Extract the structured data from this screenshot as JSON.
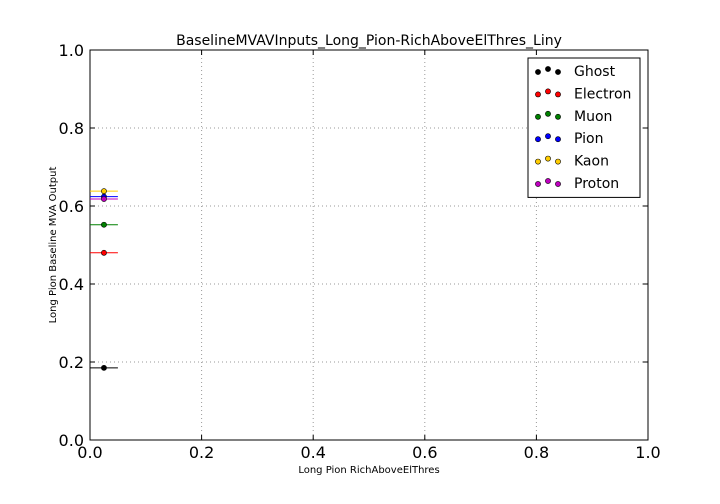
{
  "chart_data": {
    "type": "scatter",
    "title": "BaselineMVAVInputs_Long_Pion-RichAboveElThres_Liny",
    "xlabel": "Long Pion RichAboveElThres",
    "ylabel": "Long Pion Baseline MVA Output",
    "xlim": [
      0.0,
      1.0
    ],
    "ylim": [
      0.0,
      1.0
    ],
    "xticks": [
      "0.0",
      "0.2",
      "0.4",
      "0.6",
      "0.8",
      "1.0"
    ],
    "yticks": [
      "0.0",
      "0.2",
      "0.4",
      "0.6",
      "0.8",
      "1.0"
    ],
    "grid": true,
    "legend_position": "top-right",
    "series": [
      {
        "name": "Ghost",
        "color": "#000000",
        "x": [
          0.025
        ],
        "xerr": [
          0.025
        ],
        "y": [
          0.185
        ]
      },
      {
        "name": "Electron",
        "color": "#ff0000",
        "x": [
          0.025
        ],
        "xerr": [
          0.025
        ],
        "y": [
          0.48
        ]
      },
      {
        "name": "Muon",
        "color": "#008000",
        "x": [
          0.025
        ],
        "xerr": [
          0.025
        ],
        "y": [
          0.552
        ]
      },
      {
        "name": "Pion",
        "color": "#0000ff",
        "x": [
          0.025
        ],
        "xerr": [
          0.025
        ],
        "y": [
          0.624
        ]
      },
      {
        "name": "Kaon",
        "color": "#ffcc00",
        "x": [
          0.025
        ],
        "xerr": [
          0.025
        ],
        "y": [
          0.638
        ]
      },
      {
        "name": "Proton",
        "color": "#bf00bf",
        "x": [
          0.025
        ],
        "xerr": [
          0.025
        ],
        "y": [
          0.618
        ]
      }
    ]
  }
}
